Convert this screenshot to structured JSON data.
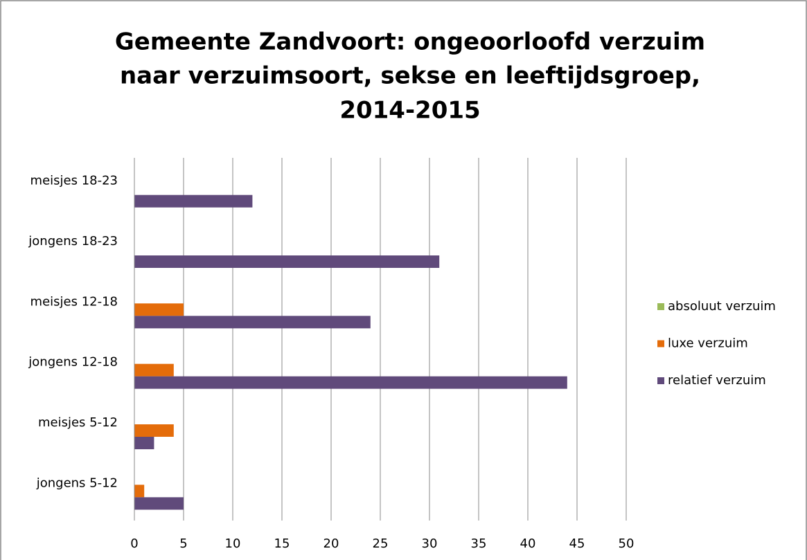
{
  "chart_data": {
    "type": "bar",
    "orientation": "horizontal",
    "title": [
      "Gemeente Zandvoort: ongeoorloofd verzuim",
      "naar verzuimsoort, sekse en leeftijdsgroep,",
      "2014-2015"
    ],
    "categories": [
      "jongens 5-12",
      "meisjes 5-12",
      "jongens 12-18",
      "meisjes 12-18",
      "jongens 18-23",
      "meisjes 18-23"
    ],
    "series": [
      {
        "name": "absoluut verzuim",
        "color": "#9bbb59",
        "values": [
          0,
          0,
          0,
          0,
          0,
          0
        ]
      },
      {
        "name": "luxe verzuim",
        "color": "#e46c0a",
        "values": [
          1,
          4,
          4,
          5,
          0,
          0
        ]
      },
      {
        "name": "relatief verzuim",
        "color": "#604a7b",
        "values": [
          5,
          2,
          44,
          24,
          31,
          12
        ]
      }
    ],
    "xlim": [
      0,
      50
    ],
    "xticks": [
      0,
      5,
      10,
      15,
      20,
      25,
      30,
      35,
      40,
      45,
      50
    ],
    "grid": true,
    "legend": "right"
  }
}
